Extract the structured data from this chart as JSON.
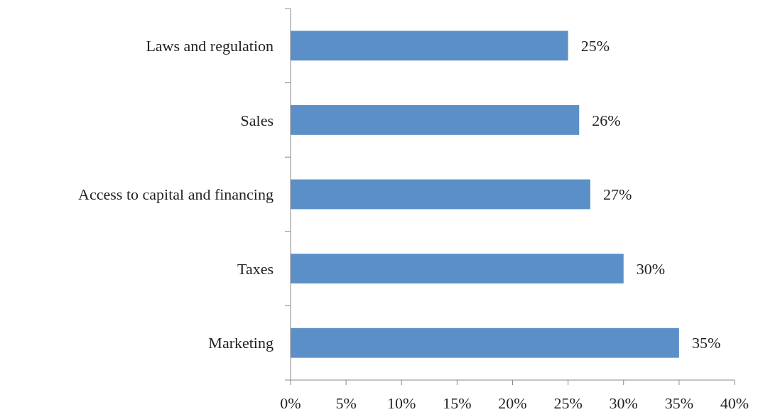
{
  "chart_data": {
    "type": "bar",
    "orientation": "horizontal",
    "categories": [
      "Laws and regulation",
      "Sales",
      "Access to capital and financing",
      "Taxes",
      "Marketing"
    ],
    "values": [
      25,
      26,
      27,
      30,
      35
    ],
    "value_labels": [
      "25%",
      "26%",
      "27%",
      "30%",
      "35%"
    ],
    "color": "#5b8fc7",
    "xlim": [
      0,
      40
    ],
    "xticks": [
      {
        "value": 0,
        "label": "0%"
      },
      {
        "value": 5,
        "label": "5%"
      },
      {
        "value": 10,
        "label": "10%"
      },
      {
        "value": 15,
        "label": "15%"
      },
      {
        "value": 20,
        "label": "20%"
      },
      {
        "value": 25,
        "label": "25%"
      },
      {
        "value": 30,
        "label": "30%"
      },
      {
        "value": 35,
        "label": "35%"
      },
      {
        "value": 40,
        "label": "40%"
      }
    ],
    "grid": false
  }
}
